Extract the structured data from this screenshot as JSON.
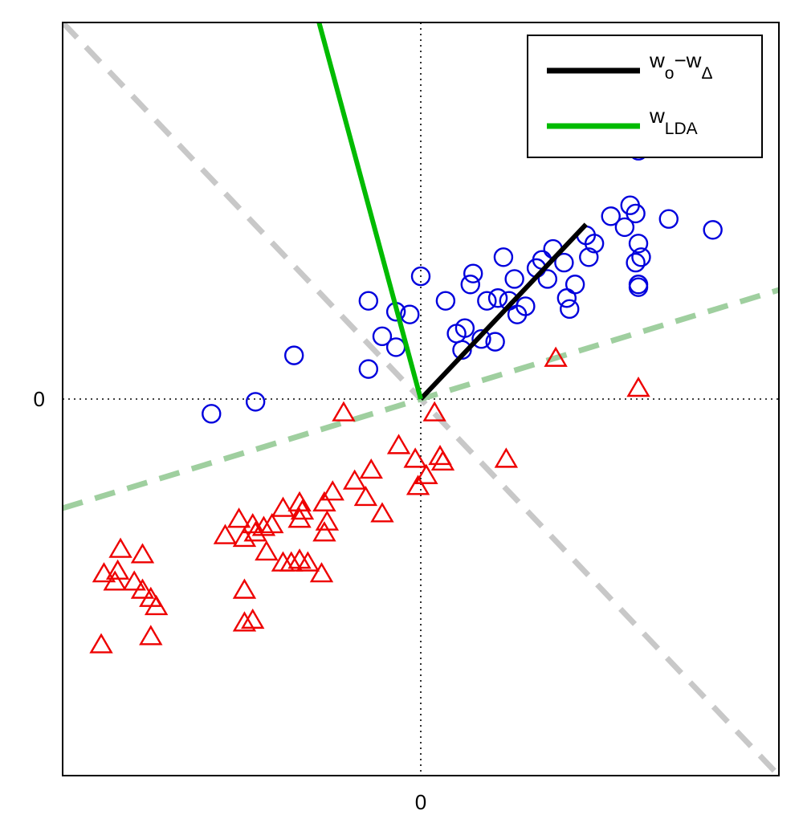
{
  "chart_data": {
    "type": "scatter",
    "title": "",
    "xlabel": "",
    "ylabel": "",
    "xlim": [
      -6.5,
      6.5
    ],
    "ylim": [
      -6.9,
      6.9
    ],
    "x_ticks": [
      {
        "value": 0,
        "label": "0"
      }
    ],
    "y_ticks": [
      {
        "value": 0,
        "label": "0"
      }
    ],
    "grid": false,
    "zero_lines": true,
    "legend_position": "top-right",
    "legend": [
      {
        "series": "w_diff",
        "parts": [
          {
            "text": "w",
            "sub": false
          },
          {
            "text": "o",
            "sub": true
          },
          {
            "text": "−w",
            "sub": false
          },
          {
            "text": "Δ",
            "sub": true
          }
        ]
      },
      {
        "series": "w_lda",
        "parts": [
          {
            "text": "w",
            "sub": false
          },
          {
            "text": "LDA",
            "sub": true
          }
        ]
      }
    ],
    "colors": {
      "class_circle": "#0000dd",
      "class_triangle": "#ee0000",
      "w_diff": "#000000",
      "w_lda": "#00bb00",
      "boundary_gray": "#c8c8c8",
      "boundary_green": "#9fcf9f"
    },
    "vectors": [
      {
        "id": "w_diff",
        "from": [
          0,
          0
        ],
        "to": [
          3.0,
          3.2
        ]
      },
      {
        "id": "w_lda",
        "from": [
          0,
          0
        ],
        "to": [
          -1.9,
          7.1
        ]
      }
    ],
    "boundaries": [
      {
        "id": "gray-dashed",
        "from": [
          -6.5,
          6.9
        ],
        "to": [
          6.5,
          -6.9
        ]
      },
      {
        "id": "green-dashed",
        "from": [
          -6.5,
          -2.0
        ],
        "to": [
          6.5,
          2.0
        ]
      }
    ],
    "series": [
      {
        "id": "circles",
        "marker": "circle",
        "points": [
          [
            -3.8,
            -0.27
          ],
          [
            -3.0,
            -0.05
          ],
          [
            -2.3,
            0.8
          ],
          [
            -0.95,
            0.55
          ],
          [
            -0.95,
            1.8
          ],
          [
            -0.7,
            1.15
          ],
          [
            -0.45,
            0.95
          ],
          [
            -0.45,
            1.6
          ],
          [
            -0.2,
            1.55
          ],
          [
            0.0,
            2.25
          ],
          [
            0.45,
            1.8
          ],
          [
            0.65,
            1.2
          ],
          [
            0.8,
            1.3
          ],
          [
            0.75,
            0.9
          ],
          [
            1.1,
            1.1
          ],
          [
            0.9,
            2.1
          ],
          [
            0.95,
            2.3
          ],
          [
            1.2,
            1.8
          ],
          [
            1.4,
            1.85
          ],
          [
            1.35,
            1.05
          ],
          [
            1.5,
            2.6
          ],
          [
            1.6,
            1.8
          ],
          [
            1.7,
            2.2
          ],
          [
            1.9,
            1.7
          ],
          [
            1.75,
            1.55
          ],
          [
            2.2,
            2.55
          ],
          [
            2.1,
            2.4
          ],
          [
            2.4,
            2.75
          ],
          [
            2.6,
            2.5
          ],
          [
            2.3,
            2.2
          ],
          [
            2.7,
            1.65
          ],
          [
            2.65,
            1.85
          ],
          [
            2.8,
            2.1
          ],
          [
            3.0,
            3.0
          ],
          [
            3.15,
            2.85
          ],
          [
            3.05,
            2.6
          ],
          [
            3.45,
            3.35
          ],
          [
            3.7,
            3.15
          ],
          [
            3.8,
            3.55
          ],
          [
            3.9,
            3.4
          ],
          [
            3.95,
            2.85
          ],
          [
            3.9,
            2.5
          ],
          [
            4.0,
            2.6
          ],
          [
            3.95,
            2.1
          ],
          [
            3.95,
            2.05
          ],
          [
            3.95,
            4.55
          ],
          [
            4.5,
            3.3
          ],
          [
            5.3,
            3.1
          ]
        ]
      },
      {
        "id": "triangles",
        "marker": "triangle",
        "points": [
          [
            2.45,
            0.75
          ],
          [
            3.95,
            0.2
          ],
          [
            -1.4,
            -0.25
          ],
          [
            0.25,
            -0.25
          ],
          [
            -0.4,
            -0.85
          ],
          [
            -0.1,
            -1.1
          ],
          [
            0.35,
            -1.05
          ],
          [
            0.4,
            -1.15
          ],
          [
            1.55,
            -1.1
          ],
          [
            0.1,
            -1.4
          ],
          [
            -0.05,
            -1.6
          ],
          [
            -0.9,
            -1.3
          ],
          [
            -1.2,
            -1.5
          ],
          [
            -1.0,
            -1.8
          ],
          [
            -0.7,
            -2.1
          ],
          [
            -1.6,
            -1.7
          ],
          [
            -1.75,
            -1.9
          ],
          [
            -2.2,
            -1.9
          ],
          [
            -2.15,
            -2.05
          ],
          [
            -2.2,
            -2.2
          ],
          [
            -2.5,
            -2.0
          ],
          [
            -1.7,
            -2.25
          ],
          [
            -1.75,
            -2.45
          ],
          [
            -2.7,
            -2.3
          ],
          [
            -2.85,
            -2.35
          ],
          [
            -3.0,
            -2.45
          ],
          [
            -3.05,
            -2.3
          ],
          [
            -3.3,
            -2.2
          ],
          [
            -3.55,
            -2.5
          ],
          [
            -3.2,
            -2.55
          ],
          [
            -2.8,
            -2.8
          ],
          [
            -2.5,
            -3.0
          ],
          [
            -2.35,
            -3.0
          ],
          [
            -2.2,
            -2.95
          ],
          [
            -2.05,
            -3.0
          ],
          [
            -1.8,
            -3.2
          ],
          [
            -3.2,
            -3.5
          ],
          [
            -3.2,
            -4.1
          ],
          [
            -3.05,
            -4.05
          ],
          [
            -5.45,
            -2.75
          ],
          [
            -5.05,
            -2.85
          ],
          [
            -5.5,
            -3.15
          ],
          [
            -5.55,
            -3.35
          ],
          [
            -5.2,
            -3.35
          ],
          [
            -5.05,
            -3.5
          ],
          [
            -4.9,
            -3.65
          ],
          [
            -4.8,
            -3.8
          ],
          [
            -4.9,
            -4.35
          ],
          [
            -5.75,
            -3.2
          ],
          [
            -5.8,
            -4.5
          ]
        ]
      }
    ]
  }
}
